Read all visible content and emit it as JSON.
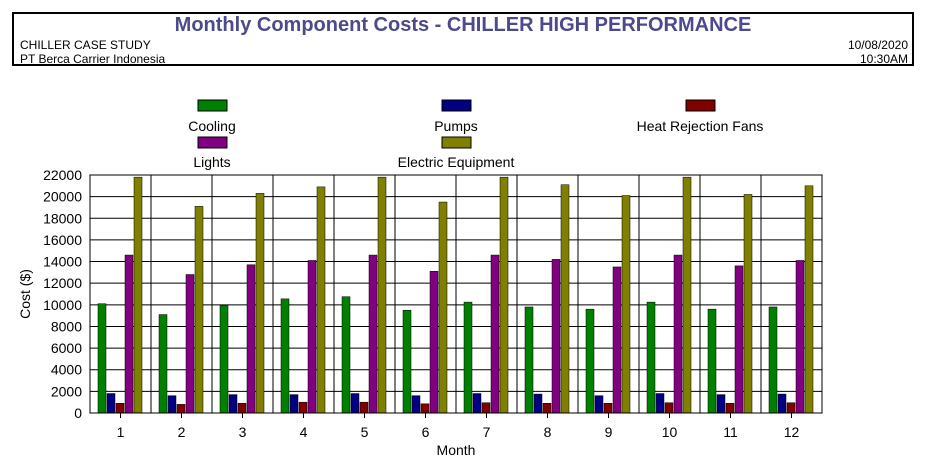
{
  "header": {
    "title": "Monthly Component Costs - CHILLER HIGH PERFORMANCE",
    "line1_left": "CHILLER CASE STUDY",
    "line2_left": "PT Berca Carrier Indonesia",
    "line1_right": "10/08/2020",
    "line2_right": "10:30AM"
  },
  "chart_data": {
    "type": "bar",
    "title": "",
    "xlabel": "Month",
    "ylabel": "Cost ($)",
    "ylim": [
      0,
      22000
    ],
    "yticks": [
      0,
      2000,
      4000,
      6000,
      8000,
      10000,
      12000,
      14000,
      16000,
      18000,
      20000,
      22000
    ],
    "grid": "vertical and horizontal",
    "legend_position": "top",
    "categories": [
      "1",
      "2",
      "3",
      "4",
      "5",
      "6",
      "7",
      "8",
      "9",
      "10",
      "11",
      "12"
    ],
    "series": [
      {
        "name": "Cooling",
        "color": "#008000",
        "values": [
          10100,
          9100,
          9950,
          10550,
          10750,
          9500,
          10250,
          9800,
          9600,
          10250,
          9600,
          9800
        ]
      },
      {
        "name": "Pumps",
        "color": "#000080",
        "values": [
          1800,
          1600,
          1700,
          1700,
          1800,
          1600,
          1800,
          1750,
          1600,
          1800,
          1700,
          1750
        ]
      },
      {
        "name": "Heat Rejection Fans",
        "color": "#800000",
        "values": [
          900,
          800,
          900,
          1000,
          1000,
          850,
          950,
          900,
          900,
          950,
          900,
          950
        ]
      },
      {
        "name": "Lights",
        "color": "#800080",
        "values": [
          14600,
          12800,
          13700,
          14100,
          14600,
          13100,
          14600,
          14200,
          13500,
          14600,
          13600,
          14100
        ]
      },
      {
        "name": "Electric Equipment",
        "color": "#808000",
        "values": [
          21800,
          19100,
          20300,
          20900,
          21800,
          19500,
          21800,
          21100,
          20100,
          21800,
          20200,
          21000
        ]
      }
    ]
  }
}
